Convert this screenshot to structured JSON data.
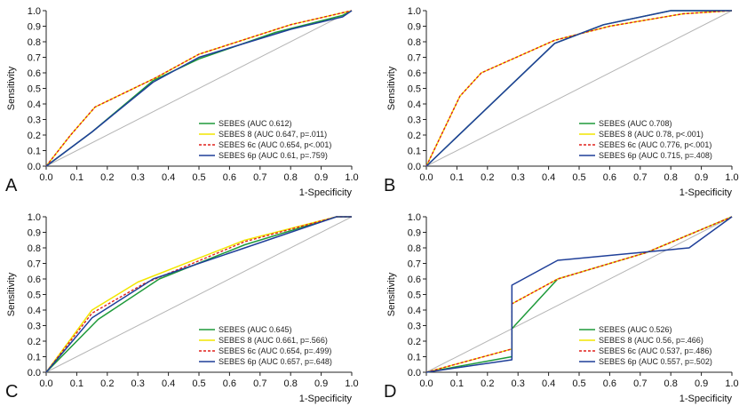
{
  "chart_data": [
    {
      "type": "line",
      "panel_label": "A",
      "xlabel": "1-Specificity",
      "ylabel": "Sensitivity",
      "xlim": [
        0,
        1
      ],
      "ylim": [
        0,
        1
      ],
      "xticks": [
        "0.0",
        "0.1",
        "0.2",
        "0.3",
        "0.4",
        "0.5",
        "0.6",
        "0.7",
        "0.8",
        "0.9",
        "1.0"
      ],
      "yticks": [
        "0.0",
        "0.1",
        "0.2",
        "0.3",
        "0.4",
        "0.5",
        "0.6",
        "0.7",
        "0.8",
        "0.9",
        "1.0"
      ],
      "grid": false,
      "legend_position": "bottom-right",
      "reference_line": true,
      "series": [
        {
          "name": "SEBES (AUC 0.612)",
          "color": "#1e9a3a",
          "style": "solid",
          "points": [
            [
              0,
              0
            ],
            [
              0.15,
              0.22
            ],
            [
              0.35,
              0.55
            ],
            [
              0.5,
              0.69
            ],
            [
              0.75,
              0.86
            ],
            [
              0.97,
              0.97
            ],
            [
              1,
              1
            ]
          ]
        },
        {
          "name": "SEBES 8 (AUC 0.647, p=.011)",
          "color": "#f2e600",
          "style": "solid",
          "points": [
            [
              0,
              0
            ],
            [
              0.08,
              0.2
            ],
            [
              0.16,
              0.38
            ],
            [
              0.36,
              0.57
            ],
            [
              0.5,
              0.72
            ],
            [
              0.8,
              0.91
            ],
            [
              1,
              1
            ]
          ]
        },
        {
          "name": "SEBES 6c (AUC 0.654, p<.001)",
          "color": "#e0201b",
          "style": "dashed",
          "points": [
            [
              0,
              0
            ],
            [
              0.08,
              0.2
            ],
            [
              0.16,
              0.38
            ],
            [
              0.36,
              0.57
            ],
            [
              0.5,
              0.72
            ],
            [
              0.8,
              0.91
            ],
            [
              1,
              1
            ]
          ]
        },
        {
          "name": "SEBES 6p (AUC 0.61, p=.759)",
          "color": "#1f3f99",
          "style": "solid",
          "points": [
            [
              0,
              0
            ],
            [
              0.15,
              0.22
            ],
            [
              0.35,
              0.54
            ],
            [
              0.5,
              0.7
            ],
            [
              0.8,
              0.88
            ],
            [
              0.97,
              0.96
            ],
            [
              1,
              1
            ]
          ]
        }
      ]
    },
    {
      "type": "line",
      "panel_label": "B",
      "xlabel": "1-Specificity",
      "ylabel": "Sensitivity",
      "xlim": [
        0,
        1
      ],
      "ylim": [
        0,
        1
      ],
      "xticks": [
        "0.0",
        "0.1",
        "0.2",
        "0.3",
        "0.4",
        "0.5",
        "0.6",
        "0.7",
        "0.8",
        "0.9",
        "1.0"
      ],
      "yticks": [
        "0.0",
        "0.1",
        "0.2",
        "0.3",
        "0.4",
        "0.5",
        "0.6",
        "0.7",
        "0.8",
        "0.9",
        "1.0"
      ],
      "grid": false,
      "legend_position": "bottom-right",
      "reference_line": true,
      "series": [
        {
          "name": "SEBES (AUC 0.708)",
          "color": "#1e9a3a",
          "style": "solid",
          "points": [
            [
              0,
              0
            ],
            [
              0.42,
              0.79
            ],
            [
              0.58,
              0.91
            ],
            [
              0.8,
              1
            ],
            [
              1,
              1
            ]
          ]
        },
        {
          "name": "SEBES 8 (AUC 0.78, p<.001)",
          "color": "#f2e600",
          "style": "solid",
          "points": [
            [
              0,
              0
            ],
            [
              0.11,
              0.45
            ],
            [
              0.18,
              0.6
            ],
            [
              0.42,
              0.81
            ],
            [
              0.6,
              0.9
            ],
            [
              0.84,
              0.98
            ],
            [
              1,
              1
            ]
          ]
        },
        {
          "name": "SEBES 6c (AUC 0.776, p<.001)",
          "color": "#e0201b",
          "style": "dashed",
          "points": [
            [
              0,
              0
            ],
            [
              0.11,
              0.45
            ],
            [
              0.18,
              0.6
            ],
            [
              0.42,
              0.81
            ],
            [
              0.6,
              0.9
            ],
            [
              0.84,
              0.98
            ],
            [
              1,
              1
            ]
          ]
        },
        {
          "name": "SEBES 6p (AUC 0.715, p=.408)",
          "color": "#1f3f99",
          "style": "solid",
          "points": [
            [
              0,
              0
            ],
            [
              0.42,
              0.79
            ],
            [
              0.58,
              0.91
            ],
            [
              0.8,
              1
            ],
            [
              1,
              1
            ]
          ]
        }
      ]
    },
    {
      "type": "line",
      "panel_label": "C",
      "xlabel": "1-Specificity",
      "ylabel": "Sensitivity",
      "xlim": [
        0,
        1
      ],
      "ylim": [
        0,
        1
      ],
      "xticks": [
        "0.0",
        "0.1",
        "0.2",
        "0.3",
        "0.4",
        "0.5",
        "0.6",
        "0.7",
        "0.8",
        "0.9",
        "1.0"
      ],
      "yticks": [
        "0.0",
        "0.1",
        "0.2",
        "0.3",
        "0.4",
        "0.5",
        "0.6",
        "0.7",
        "0.8",
        "0.9",
        "1.0"
      ],
      "grid": false,
      "legend_position": "bottom-right",
      "reference_line": true,
      "series": [
        {
          "name": "SEBES (AUC 0.645)",
          "color": "#1e9a3a",
          "style": "solid",
          "points": [
            [
              0,
              0
            ],
            [
              0.17,
              0.34
            ],
            [
              0.37,
              0.6
            ],
            [
              0.65,
              0.82
            ],
            [
              0.95,
              1
            ],
            [
              1,
              1
            ]
          ]
        },
        {
          "name": "SEBES 8 (AUC 0.661, p=.566)",
          "color": "#f2e600",
          "style": "solid",
          "points": [
            [
              0,
              0
            ],
            [
              0.15,
              0.4
            ],
            [
              0.3,
              0.58
            ],
            [
              0.65,
              0.85
            ],
            [
              0.95,
              1
            ],
            [
              1,
              1
            ]
          ]
        },
        {
          "name": "SEBES 6c (AUC 0.654, p=.499)",
          "color": "#e0201b",
          "style": "dashed",
          "points": [
            [
              0,
              0
            ],
            [
              0.15,
              0.38
            ],
            [
              0.32,
              0.57
            ],
            [
              0.65,
              0.84
            ],
            [
              0.95,
              1
            ],
            [
              1,
              1
            ]
          ]
        },
        {
          "name": "SEBES 6p (AUC 0.657, p=.648)",
          "color": "#1f3f99",
          "style": "solid",
          "points": [
            [
              0,
              0
            ],
            [
              0.15,
              0.35
            ],
            [
              0.35,
              0.6
            ],
            [
              0.65,
              0.8
            ],
            [
              0.95,
              1
            ],
            [
              1,
              1
            ]
          ]
        }
      ]
    },
    {
      "type": "line",
      "panel_label": "D",
      "xlabel": "1-Specificity",
      "ylabel": "Sensitivity",
      "xlim": [
        0,
        1
      ],
      "ylim": [
        0,
        1
      ],
      "xticks": [
        "0.0",
        "0.1",
        "0.2",
        "0.3",
        "0.4",
        "0.5",
        "0.6",
        "0.7",
        "0.8",
        "0.9",
        "1.0"
      ],
      "yticks": [
        "0.0",
        "0.1",
        "0.2",
        "0.3",
        "0.4",
        "0.5",
        "0.6",
        "0.7",
        "0.8",
        "0.9",
        "1.0"
      ],
      "grid": false,
      "legend_position": "bottom-right",
      "reference_line": true,
      "series": [
        {
          "name": "SEBES (AUC 0.526)",
          "color": "#1e9a3a",
          "style": "solid",
          "points": [
            [
              0,
              0
            ],
            [
              0.28,
              0.1
            ],
            [
              0.28,
              0.28
            ],
            [
              0.43,
              0.6
            ],
            [
              0.72,
              0.77
            ],
            [
              1,
              1
            ]
          ]
        },
        {
          "name": "SEBES 8 (AUC 0.56, p=.466)",
          "color": "#f2e600",
          "style": "solid",
          "points": [
            [
              0,
              0
            ],
            [
              0.28,
              0.15
            ],
            [
              0.28,
              0.44
            ],
            [
              0.43,
              0.6
            ],
            [
              0.72,
              0.77
            ],
            [
              1,
              1
            ]
          ]
        },
        {
          "name": "SEBES 6c (AUC 0.537, p=.486)",
          "color": "#e0201b",
          "style": "dashed",
          "points": [
            [
              0,
              0
            ],
            [
              0.28,
              0.15
            ],
            [
              0.28,
              0.44
            ],
            [
              0.43,
              0.6
            ],
            [
              0.72,
              0.77
            ],
            [
              1,
              1
            ]
          ]
        },
        {
          "name": "SEBES 6p (AUC 0.557, p=.502)",
          "color": "#1f3f99",
          "style": "solid",
          "points": [
            [
              0,
              0
            ],
            [
              0.28,
              0.08
            ],
            [
              0.28,
              0.56
            ],
            [
              0.43,
              0.72
            ],
            [
              0.86,
              0.8
            ],
            [
              1,
              1
            ]
          ]
        }
      ]
    }
  ]
}
